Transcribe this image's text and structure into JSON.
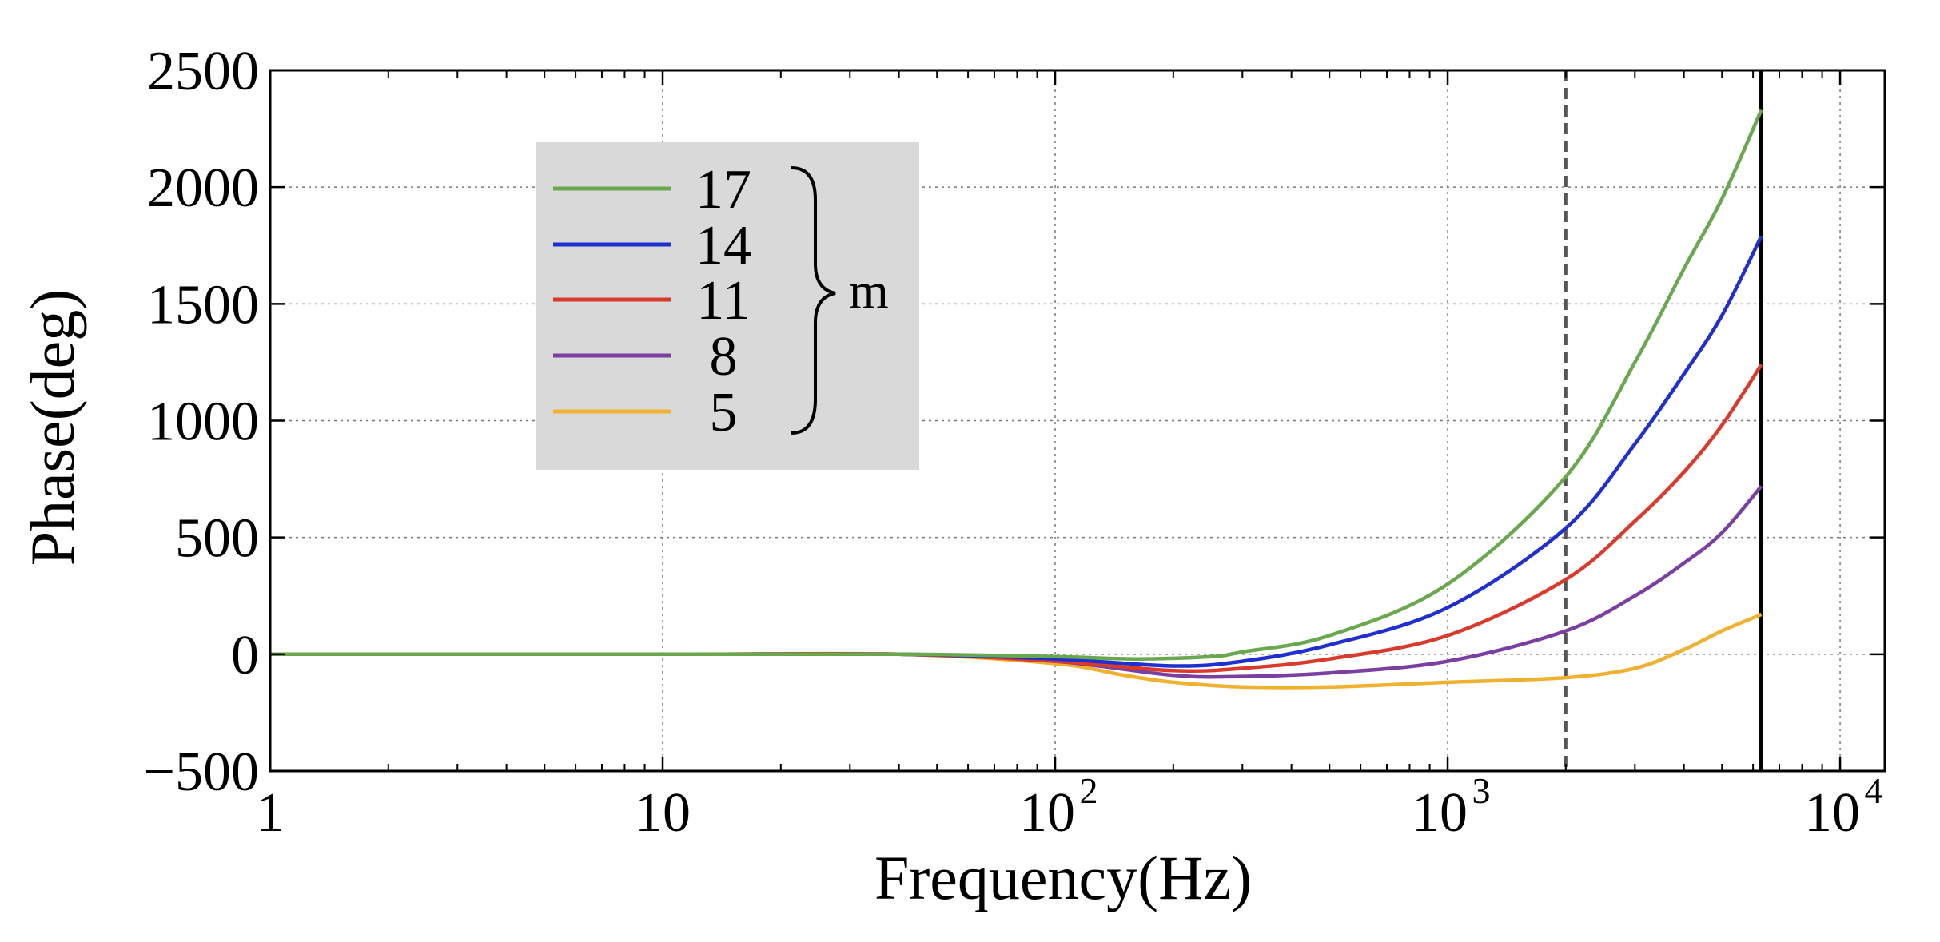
{
  "chart_data": {
    "type": "line",
    "xscale": "log",
    "xlabel": "Frequency(Hz)",
    "ylabel": "Phase(deg)",
    "xlim": [
      1,
      13000
    ],
    "ylim": [
      -500,
      2500
    ],
    "grid": true,
    "x_ticks": [
      {
        "value": 1,
        "label": "1"
      },
      {
        "value": 10,
        "label": "10"
      },
      {
        "value": 100,
        "base": "10",
        "exp": "2"
      },
      {
        "value": 1000,
        "base": "10",
        "exp": "3"
      },
      {
        "value": 10000,
        "base": "10",
        "exp": "4"
      }
    ],
    "y_ticks": [
      {
        "value": -500,
        "label": "−500"
      },
      {
        "value": 0,
        "label": "0"
      },
      {
        "value": 500,
        "label": "500"
      },
      {
        "value": 1000,
        "label": "1000"
      },
      {
        "value": 1500,
        "label": "1500"
      },
      {
        "value": 2000,
        "label": "2000"
      },
      {
        "value": 2500,
        "label": "2500"
      }
    ],
    "reference_lines": [
      {
        "x": 2000,
        "style": "dashed",
        "color": "#555555"
      },
      {
        "x": 6300,
        "style": "solid",
        "color": "#000000"
      }
    ],
    "legend": {
      "position": "top-left",
      "bracket_label": "m",
      "entries": [
        "17",
        "14",
        "11",
        "8",
        "5"
      ]
    },
    "series": [
      {
        "name": "17",
        "color": "#6aa84f",
        "x": [
          1,
          10,
          40,
          100,
          160,
          250,
          300,
          500,
          1000,
          2000,
          3000,
          4000,
          5000,
          6300
        ],
        "y": [
          0,
          0,
          0,
          -10,
          -20,
          -10,
          10,
          80,
          300,
          760,
          1250,
          1650,
          1950,
          2330
        ]
      },
      {
        "name": "14",
        "color": "#1f2fd0",
        "x": [
          1,
          10,
          40,
          100,
          200,
          300,
          500,
          1000,
          2000,
          3000,
          4000,
          5000,
          6300
        ],
        "y": [
          0,
          0,
          0,
          -20,
          -50,
          -30,
          40,
          200,
          540,
          900,
          1200,
          1450,
          1790
        ]
      },
      {
        "name": "11",
        "color": "#d93a2b",
        "x": [
          1,
          10,
          40,
          100,
          200,
          300,
          500,
          1000,
          2000,
          3000,
          4000,
          5000,
          6300
        ],
        "y": [
          0,
          0,
          0,
          -30,
          -70,
          -60,
          -20,
          80,
          320,
          570,
          780,
          980,
          1240
        ]
      },
      {
        "name": "8",
        "color": "#7a3fa0",
        "x": [
          1,
          10,
          40,
          100,
          200,
          300,
          500,
          1000,
          2000,
          3000,
          4000,
          5000,
          6300
        ],
        "y": [
          0,
          0,
          0,
          -30,
          -90,
          -95,
          -80,
          -30,
          100,
          250,
          390,
          520,
          720
        ]
      },
      {
        "name": "5",
        "color": "#f0b030",
        "x": [
          1,
          10,
          40,
          100,
          150,
          200,
          300,
          500,
          1000,
          2000,
          3000,
          4000,
          5000,
          6300
        ],
        "y": [
          0,
          0,
          0,
          -40,
          -90,
          -120,
          -140,
          -140,
          -120,
          -100,
          -60,
          20,
          100,
          170
        ]
      }
    ]
  }
}
